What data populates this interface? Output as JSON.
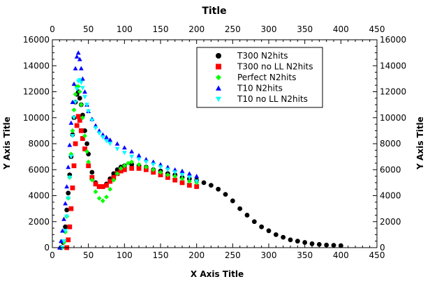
{
  "chart_data": {
    "type": "scatter",
    "title": "Title",
    "xlabel": "X Axis Title",
    "ylabel": "Y Axis Title",
    "xlim": [
      0,
      450
    ],
    "ylim": [
      0,
      16000
    ],
    "x_ticks": [
      0,
      50,
      100,
      150,
      200,
      250,
      300,
      350,
      400,
      450
    ],
    "y_ticks": [
      0,
      2000,
      4000,
      6000,
      8000,
      10000,
      12000,
      14000,
      16000
    ],
    "grid": false,
    "legend_position": "top-right",
    "series": [
      {
        "name": "T300 N2hits",
        "color": "#000000",
        "marker": "circle",
        "points": [
          [
            12,
            0
          ],
          [
            15,
            400
          ],
          [
            18,
            1600
          ],
          [
            20,
            2900
          ],
          [
            22,
            4200
          ],
          [
            24,
            5600
          ],
          [
            26,
            7000
          ],
          [
            28,
            8700
          ],
          [
            30,
            10000
          ],
          [
            32,
            11200
          ],
          [
            34,
            11800
          ],
          [
            36,
            12000
          ],
          [
            38,
            11500
          ],
          [
            40,
            11000
          ],
          [
            42,
            10200
          ],
          [
            45,
            9000
          ],
          [
            48,
            8000
          ],
          [
            50,
            7200
          ],
          [
            55,
            5800
          ],
          [
            60,
            5000
          ],
          [
            65,
            4700
          ],
          [
            70,
            4700
          ],
          [
            75,
            4900
          ],
          [
            80,
            5300
          ],
          [
            85,
            5700
          ],
          [
            90,
            6000
          ],
          [
            95,
            6200
          ],
          [
            100,
            6300
          ],
          [
            110,
            6400
          ],
          [
            120,
            6300
          ],
          [
            130,
            6200
          ],
          [
            140,
            6000
          ],
          [
            150,
            5900
          ],
          [
            160,
            5700
          ],
          [
            170,
            5600
          ],
          [
            180,
            5400
          ],
          [
            190,
            5300
          ],
          [
            200,
            5200
          ],
          [
            210,
            5000
          ],
          [
            220,
            4800
          ],
          [
            230,
            4500
          ],
          [
            240,
            4100
          ],
          [
            250,
            3600
          ],
          [
            260,
            3000
          ],
          [
            270,
            2500
          ],
          [
            280,
            2000
          ],
          [
            290,
            1600
          ],
          [
            300,
            1300
          ],
          [
            310,
            1000
          ],
          [
            320,
            800
          ],
          [
            330,
            600
          ],
          [
            340,
            500
          ],
          [
            350,
            400
          ],
          [
            360,
            300
          ],
          [
            370,
            250
          ],
          [
            380,
            200
          ],
          [
            390,
            180
          ],
          [
            400,
            150
          ]
        ]
      },
      {
        "name": "T300 no LL N2hits",
        "color": "#ff0000",
        "marker": "square",
        "points": [
          [
            20,
            0
          ],
          [
            22,
            600
          ],
          [
            24,
            1600
          ],
          [
            26,
            3000
          ],
          [
            28,
            4600
          ],
          [
            30,
            6300
          ],
          [
            32,
            8000
          ],
          [
            34,
            9400
          ],
          [
            36,
            10100
          ],
          [
            38,
            9800
          ],
          [
            40,
            9000
          ],
          [
            42,
            8400
          ],
          [
            45,
            7600
          ],
          [
            50,
            6300
          ],
          [
            55,
            5400
          ],
          [
            60,
            4900
          ],
          [
            65,
            4700
          ],
          [
            70,
            4700
          ],
          [
            75,
            4800
          ],
          [
            80,
            5100
          ],
          [
            85,
            5400
          ],
          [
            90,
            5700
          ],
          [
            95,
            5900
          ],
          [
            100,
            6000
          ],
          [
            110,
            6100
          ],
          [
            120,
            6100
          ],
          [
            130,
            6000
          ],
          [
            140,
            5800
          ],
          [
            150,
            5600
          ],
          [
            160,
            5400
          ],
          [
            170,
            5200
          ],
          [
            180,
            5000
          ],
          [
            190,
            4800
          ],
          [
            200,
            4700
          ]
        ]
      },
      {
        "name": "Perfect N2hits",
        "color": "#00ff00",
        "marker": "diamond",
        "points": [
          [
            14,
            0
          ],
          [
            16,
            400
          ],
          [
            18,
            1200
          ],
          [
            20,
            2400
          ],
          [
            22,
            3800
          ],
          [
            24,
            5400
          ],
          [
            26,
            7200
          ],
          [
            28,
            9000
          ],
          [
            30,
            10600
          ],
          [
            32,
            11800
          ],
          [
            34,
            12400
          ],
          [
            36,
            12400
          ],
          [
            38,
            12000
          ],
          [
            40,
            11000
          ],
          [
            42,
            10000
          ],
          [
            45,
            8600
          ],
          [
            48,
            7400
          ],
          [
            50,
            6600
          ],
          [
            55,
            5200
          ],
          [
            60,
            4300
          ],
          [
            65,
            3800
          ],
          [
            70,
            3600
          ],
          [
            75,
            3900
          ],
          [
            80,
            4500
          ],
          [
            85,
            5200
          ],
          [
            90,
            5700
          ],
          [
            95,
            6100
          ],
          [
            100,
            6300
          ],
          [
            105,
            6500
          ],
          [
            110,
            6600
          ],
          [
            120,
            6400
          ],
          [
            130,
            6200
          ],
          [
            140,
            6000
          ],
          [
            150,
            5800
          ],
          [
            160,
            5600
          ],
          [
            170,
            5500
          ],
          [
            180,
            5300
          ],
          [
            190,
            5100
          ],
          [
            200,
            5000
          ]
        ]
      },
      {
        "name": "T10 N2hits",
        "color": "#0000ff",
        "marker": "triangle",
        "points": [
          [
            10,
            0
          ],
          [
            12,
            500
          ],
          [
            14,
            1300
          ],
          [
            16,
            2200
          ],
          [
            18,
            3400
          ],
          [
            20,
            4700
          ],
          [
            22,
            6200
          ],
          [
            24,
            7900
          ],
          [
            26,
            9600
          ],
          [
            28,
            11200
          ],
          [
            30,
            12600
          ],
          [
            32,
            13800
          ],
          [
            34,
            14700
          ],
          [
            36,
            15000
          ],
          [
            38,
            14500
          ],
          [
            40,
            13800
          ],
          [
            42,
            13000
          ],
          [
            45,
            12000
          ],
          [
            48,
            11000
          ],
          [
            50,
            10500
          ],
          [
            55,
            9900
          ],
          [
            60,
            9400
          ],
          [
            65,
            9000
          ],
          [
            70,
            8700
          ],
          [
            75,
            8500
          ],
          [
            80,
            8300
          ],
          [
            90,
            8000
          ],
          [
            100,
            7700
          ],
          [
            110,
            7400
          ],
          [
            120,
            7100
          ],
          [
            130,
            6800
          ],
          [
            140,
            6600
          ],
          [
            150,
            6400
          ],
          [
            160,
            6200
          ],
          [
            170,
            6000
          ],
          [
            180,
            5900
          ],
          [
            190,
            5700
          ],
          [
            200,
            5500
          ]
        ]
      },
      {
        "name": "T10 no LL N2hits",
        "color": "#00ffff",
        "marker": "triangle-down",
        "points": [
          [
            14,
            0
          ],
          [
            16,
            500
          ],
          [
            18,
            1300
          ],
          [
            20,
            2400
          ],
          [
            22,
            3800
          ],
          [
            24,
            5400
          ],
          [
            26,
            7000
          ],
          [
            28,
            8600
          ],
          [
            30,
            10000
          ],
          [
            32,
            11200
          ],
          [
            34,
            12200
          ],
          [
            36,
            12800
          ],
          [
            38,
            12900
          ],
          [
            40,
            12700
          ],
          [
            42,
            12300
          ],
          [
            45,
            11600
          ],
          [
            48,
            11000
          ],
          [
            50,
            10500
          ],
          [
            55,
            9800
          ],
          [
            60,
            9200
          ],
          [
            65,
            8800
          ],
          [
            70,
            8500
          ],
          [
            75,
            8200
          ],
          [
            80,
            8000
          ],
          [
            90,
            7600
          ],
          [
            100,
            7300
          ],
          [
            110,
            7000
          ],
          [
            120,
            6800
          ],
          [
            130,
            6600
          ],
          [
            140,
            6400
          ],
          [
            150,
            6200
          ],
          [
            160,
            6000
          ],
          [
            170,
            5800
          ],
          [
            180,
            5600
          ],
          [
            190,
            5400
          ],
          [
            200,
            5100
          ]
        ]
      }
    ]
  }
}
